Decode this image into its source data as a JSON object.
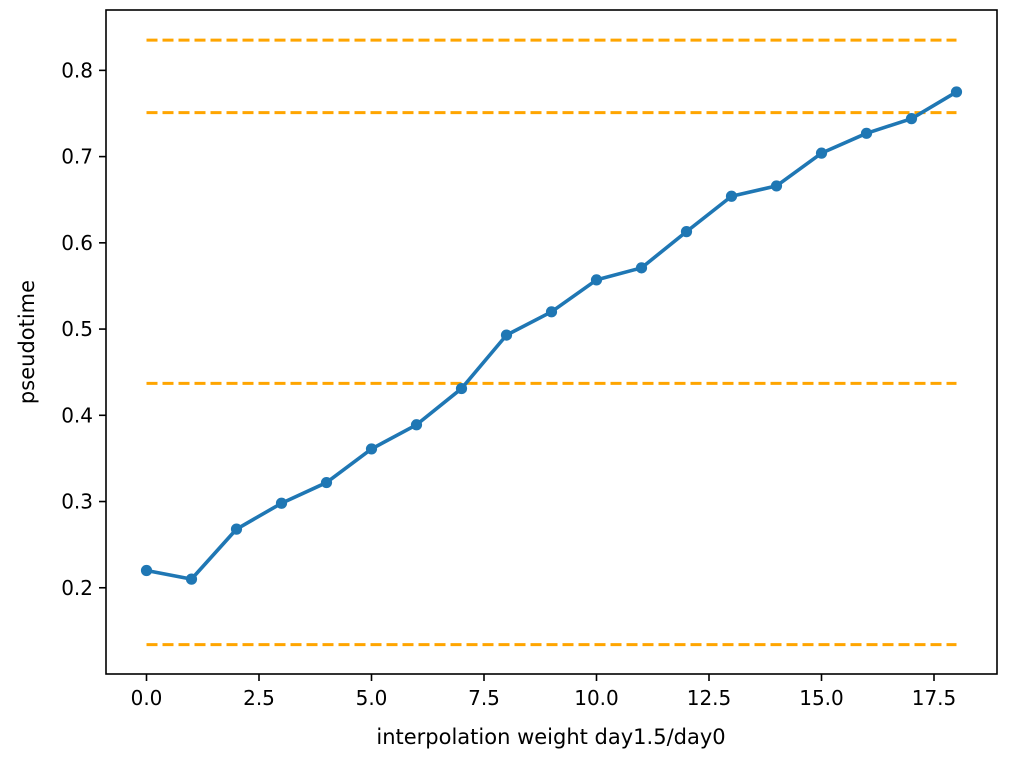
{
  "chart_data": {
    "type": "line",
    "title": "",
    "xlabel": "interpolation weight day1.5/day0",
    "ylabel": "pseudotime",
    "xlim": [
      -0.9,
      18.9
    ],
    "ylim": [
      0.1,
      0.87
    ],
    "x_ticks": [
      0.0,
      2.5,
      5.0,
      7.5,
      10.0,
      12.5,
      15.0,
      17.5
    ],
    "x_tick_labels": [
      "0.0",
      "2.5",
      "5.0",
      "7.5",
      "10.0",
      "12.5",
      "15.0",
      "17.5"
    ],
    "y_ticks": [
      0.2,
      0.3,
      0.4,
      0.5,
      0.6,
      0.7,
      0.8
    ],
    "y_tick_labels": [
      "0.2",
      "0.3",
      "0.4",
      "0.5",
      "0.6",
      "0.7",
      "0.8"
    ],
    "grid": false,
    "series": [
      {
        "color": "#1f77b4",
        "marker": "circle",
        "x": [
          0,
          1,
          2,
          3,
          4,
          5,
          6,
          7,
          8,
          9,
          10,
          11,
          12,
          13,
          14,
          15,
          16,
          17,
          18
        ],
        "values": [
          0.22,
          0.21,
          0.268,
          0.298,
          0.322,
          0.361,
          0.389,
          0.431,
          0.493,
          0.52,
          0.557,
          0.571,
          0.613,
          0.654,
          0.666,
          0.704,
          0.727,
          0.744,
          0.775
        ]
      }
    ],
    "reference_lines": [
      {
        "orientation": "horizontal",
        "y": 0.835,
        "x_from": 0,
        "x_to": 18,
        "color": "#ffa500",
        "style": "dashed"
      },
      {
        "orientation": "horizontal",
        "y": 0.751,
        "x_from": 0,
        "x_to": 18,
        "color": "#ffa500",
        "style": "dashed"
      },
      {
        "orientation": "horizontal",
        "y": 0.437,
        "x_from": 0,
        "x_to": 18,
        "color": "#ffa500",
        "style": "dashed"
      },
      {
        "orientation": "horizontal",
        "y": 0.134,
        "x_from": 0,
        "x_to": 18,
        "color": "#ffa500",
        "style": "dashed"
      }
    ]
  }
}
